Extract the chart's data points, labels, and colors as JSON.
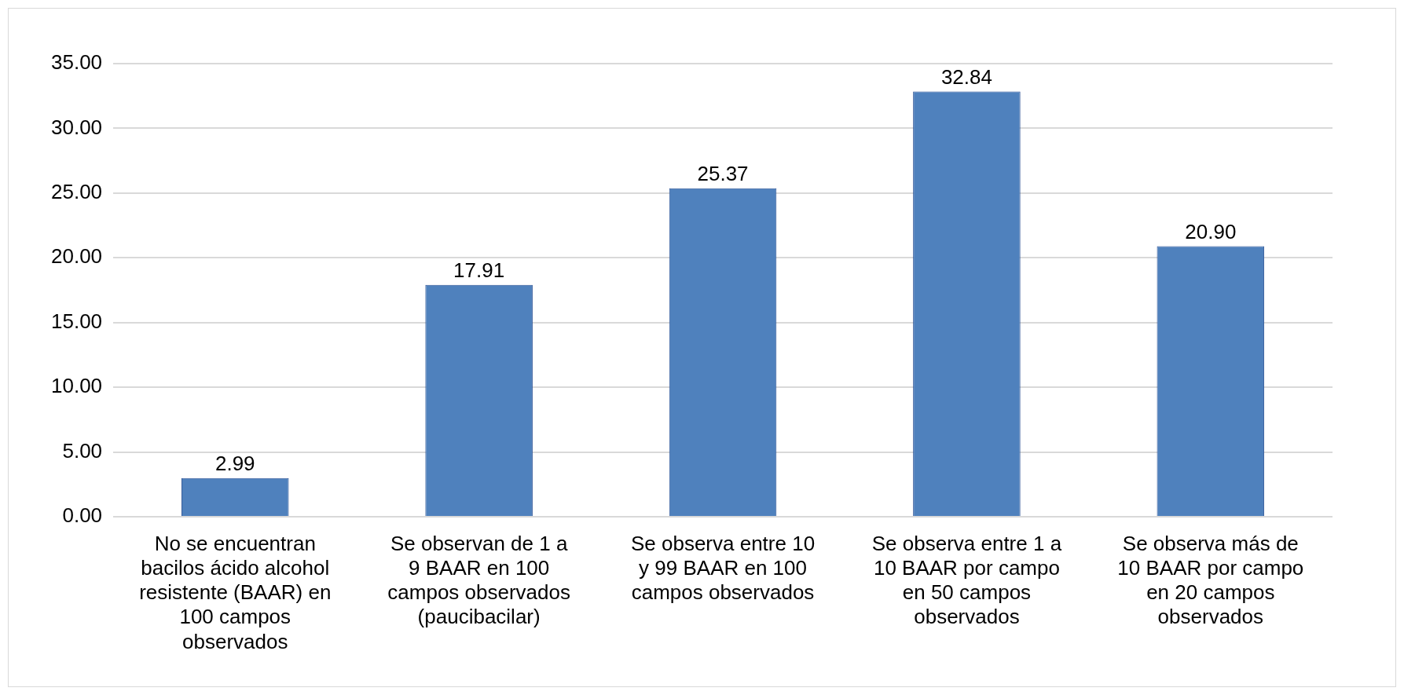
{
  "chart_data": {
    "type": "bar",
    "categories": [
      "No se encuentran bacilos ácido alcohol resistente (BAAR) en 100 campos observados",
      "Se observan de 1 a 9 BAAR en 100 campos observados (paucibacilar)",
      "Se observa entre 10 y 99 BAAR en 100 campos observados",
      "Se observa entre 1 a 10 BAAR por campo en 50 campos observados",
      "Se observa más de 10 BAAR por campo en 20 campos observados"
    ],
    "values": [
      2.99,
      17.91,
      25.37,
      32.84,
      20.9
    ],
    "value_labels": [
      "2.99",
      "17.91",
      "25.37",
      "32.84",
      "20.90"
    ],
    "color": "#4f81bd",
    "ylim": [
      0,
      35
    ],
    "yticks": [
      {
        "value": 0,
        "label": "0.00"
      },
      {
        "value": 5,
        "label": "5.00"
      },
      {
        "value": 10,
        "label": "10.00"
      },
      {
        "value": 15,
        "label": "15.00"
      },
      {
        "value": 20,
        "label": "20.00"
      },
      {
        "value": 25,
        "label": "25.00"
      },
      {
        "value": 30,
        "label": "30.00"
      },
      {
        "value": 35,
        "label": "35.00"
      }
    ],
    "grid": "y"
  }
}
